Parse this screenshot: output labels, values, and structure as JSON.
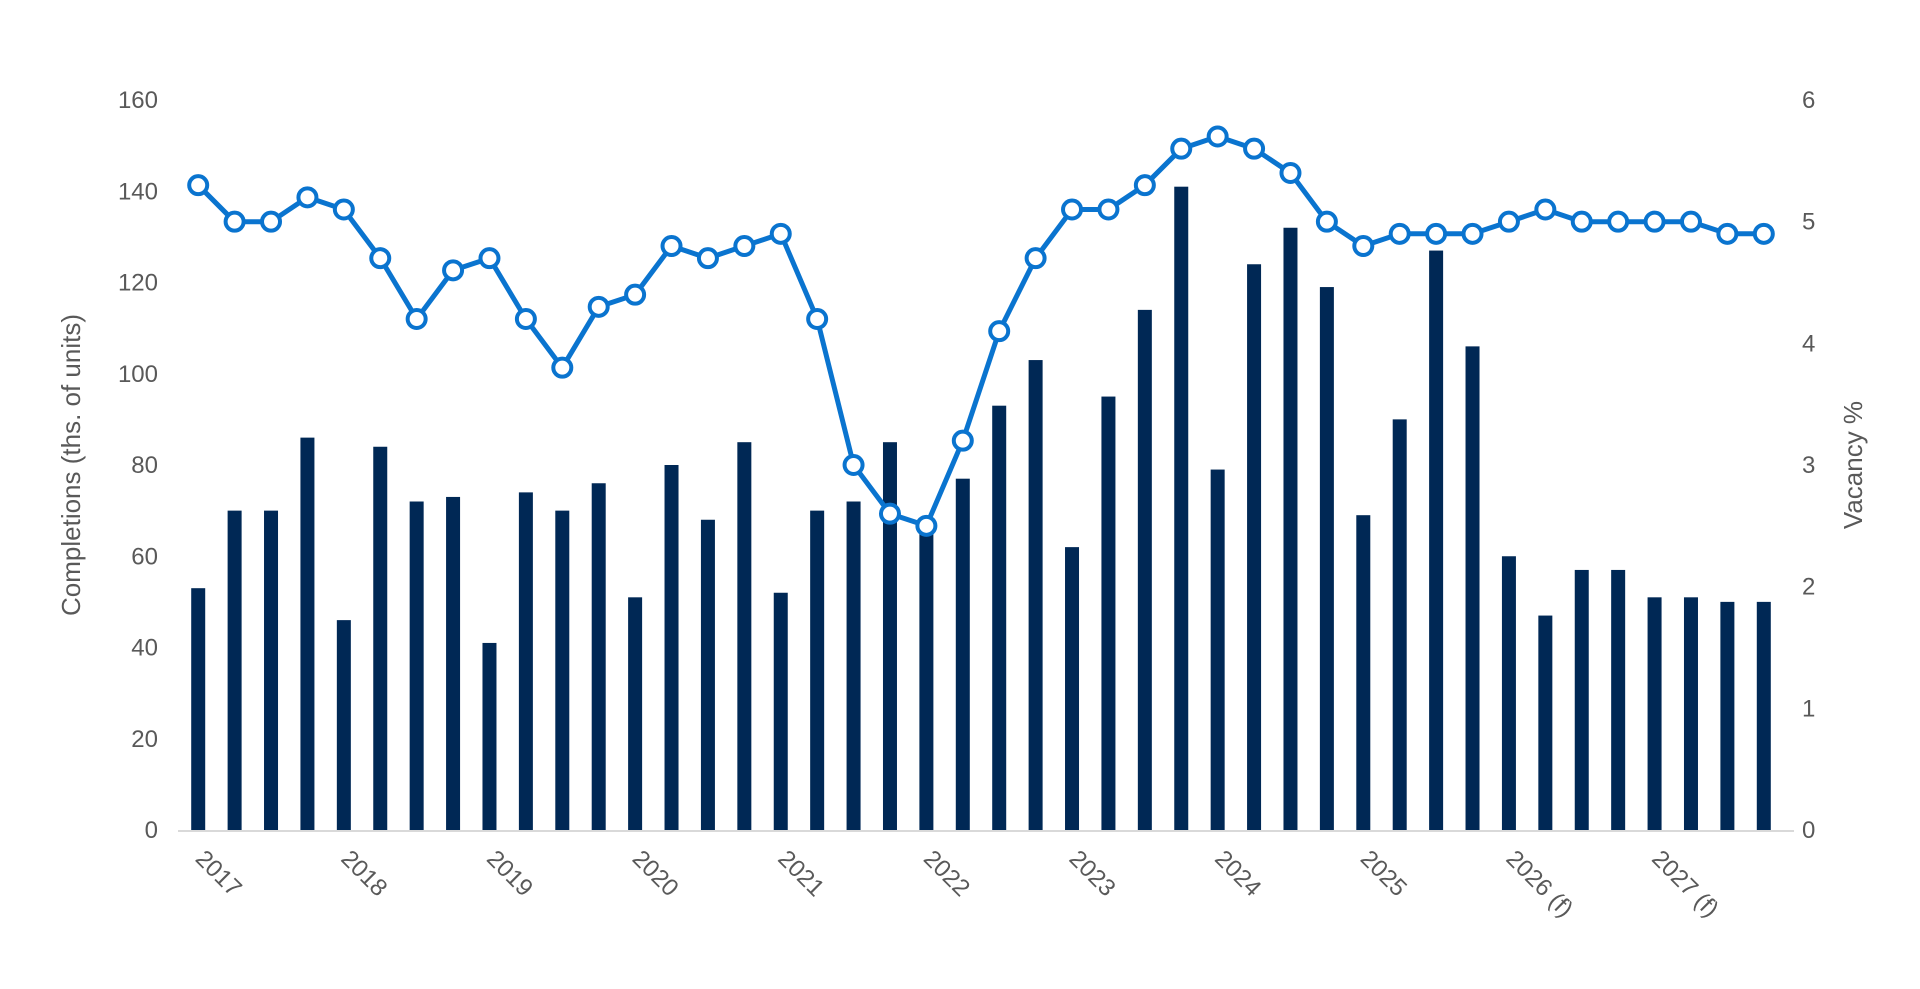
{
  "chart_data": {
    "type": "bar+line",
    "colors": {
      "bars": "#002855",
      "line": "#0A74CF",
      "marker_fill": "#ffffff",
      "axis_text": "#595959",
      "baseline": "#D9D9D9"
    },
    "left_axis": {
      "label": "Completions (ths. of units)",
      "ylim": [
        0,
        160
      ],
      "ticks": [
        0,
        20,
        40,
        60,
        80,
        100,
        120,
        140,
        160
      ]
    },
    "right_axis": {
      "label": "Vacancy %",
      "ylim": [
        0,
        6
      ],
      "ticks": [
        0,
        1,
        2,
        3,
        4,
        5,
        6
      ]
    },
    "x_tick_labels": [
      "2017",
      "2018",
      "2019",
      "2020",
      "2021",
      "2022",
      "2023",
      "2024",
      "2025",
      "2026 (f)",
      "2027 (f)"
    ],
    "x_tick_every": 4,
    "grid": false,
    "legend": "none",
    "series": [
      {
        "type": "bar",
        "axis": "left",
        "values": [
          53,
          70,
          70,
          86,
          46,
          84,
          72,
          73,
          41,
          74,
          70,
          76,
          51,
          80,
          68,
          85,
          52,
          70,
          72,
          85,
          68,
          77,
          93,
          103,
          62,
          95,
          114,
          141,
          79,
          124,
          132,
          119,
          69,
          90,
          127,
          106,
          60,
          47,
          57,
          57,
          51,
          51,
          50,
          50
        ]
      },
      {
        "type": "line",
        "axis": "right",
        "values": [
          5.3,
          5.0,
          5.0,
          5.2,
          5.1,
          4.7,
          4.2,
          4.6,
          4.7,
          4.2,
          3.8,
          4.3,
          4.4,
          4.8,
          4.7,
          4.8,
          4.9,
          4.2,
          3.0,
          2.6,
          2.5,
          3.2,
          4.1,
          4.7,
          5.1,
          5.1,
          5.3,
          5.6,
          5.7,
          5.6,
          5.4,
          5.0,
          4.8,
          4.9,
          4.9,
          4.9,
          5.0,
          5.1,
          5.0,
          5.0,
          5.0,
          5.0,
          4.9,
          4.9
        ]
      }
    ]
  }
}
